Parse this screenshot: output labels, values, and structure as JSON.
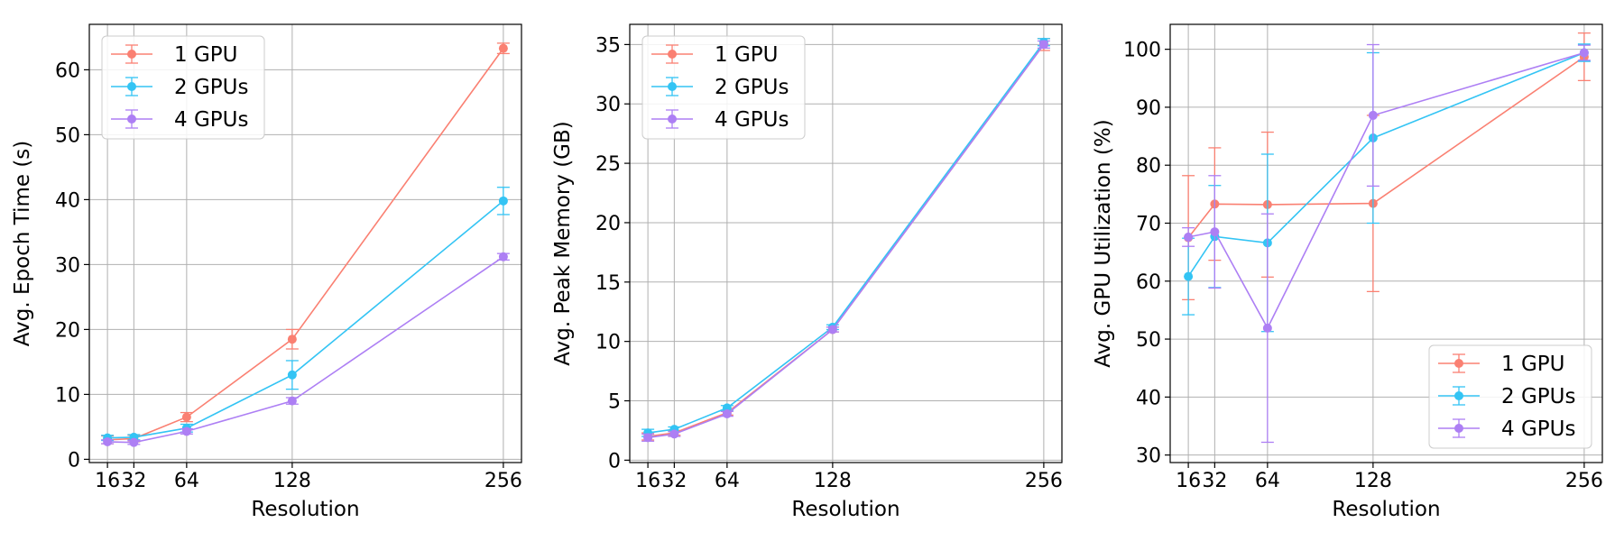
{
  "colors": {
    "1gpu": "#fa8072",
    "2gpus": "#33c4f4",
    "4gpus": "#ad7ff4",
    "grid": "#b0b0b0"
  },
  "chart_data": [
    {
      "type": "line",
      "xlabel": "Resolution",
      "ylabel": "Avg. Epoch Time (s)",
      "x": [
        16,
        32,
        64,
        128,
        256
      ],
      "x_tick_labels": [
        "16",
        "32",
        "64",
        "128",
        "256"
      ],
      "xlim": [
        5,
        267
      ],
      "ylim": [
        -0.5,
        67
      ],
      "yticks": [
        0,
        10,
        20,
        30,
        40,
        50,
        60
      ],
      "grid": true,
      "legend": "top-left",
      "series": [
        {
          "name": "1 GPU",
          "color_key": "1gpu",
          "values": [
            3.0,
            3.2,
            6.5,
            18.5,
            63.3
          ],
          "errors": [
            0.6,
            0.5,
            0.7,
            1.5,
            0.8
          ]
        },
        {
          "name": "2 GPUs",
          "color_key": "2gpus",
          "values": [
            3.3,
            3.4,
            4.8,
            13.0,
            39.8
          ],
          "errors": [
            0.4,
            0.4,
            0.6,
            2.2,
            2.1
          ]
        },
        {
          "name": "4 GPUs",
          "color_key": "4gpus",
          "values": [
            2.7,
            2.6,
            4.3,
            9.0,
            31.2
          ],
          "errors": [
            0.3,
            0.3,
            0.4,
            0.5,
            0.5
          ]
        }
      ]
    },
    {
      "type": "line",
      "xlabel": "Resolution",
      "ylabel": "Avg. Peak Memory (GB)",
      "x": [
        16,
        32,
        64,
        128,
        256
      ],
      "x_tick_labels": [
        "16",
        "32",
        "64",
        "128",
        "256"
      ],
      "xlim": [
        5,
        267
      ],
      "ylim": [
        -0.2,
        36.7
      ],
      "yticks": [
        0,
        5,
        10,
        15,
        20,
        25,
        30,
        35
      ],
      "grid": true,
      "legend": "top-left",
      "series": [
        {
          "name": "1 GPU",
          "color_key": "1gpu",
          "values": [
            2.0,
            2.3,
            4.0,
            11.0,
            35.0
          ],
          "errors": [
            0.3,
            0.2,
            0.2,
            0.2,
            0.5
          ]
        },
        {
          "name": "2 GPUs",
          "color_key": "2gpus",
          "values": [
            2.3,
            2.6,
            4.4,
            11.2,
            35.2
          ],
          "errors": [
            0.3,
            0.2,
            0.2,
            0.2,
            0.3
          ]
        },
        {
          "name": "4 GPUs",
          "color_key": "4gpus",
          "values": [
            1.9,
            2.2,
            3.9,
            11.0,
            35.0
          ],
          "errors": [
            0.3,
            0.2,
            0.2,
            0.2,
            0.3
          ]
        }
      ]
    },
    {
      "type": "line",
      "xlabel": "Resolution",
      "ylabel": "Avg. GPU Utilization (%)",
      "x": [
        16,
        32,
        64,
        128,
        256
      ],
      "x_tick_labels": [
        "16",
        "32",
        "64",
        "128",
        "256"
      ],
      "xlim": [
        5,
        267
      ],
      "ylim": [
        28.7,
        104.3
      ],
      "yticks": [
        30,
        40,
        50,
        60,
        70,
        80,
        90,
        100
      ],
      "grid": true,
      "legend": "bottom-right",
      "series": [
        {
          "name": "1 GPU",
          "color_key": "1gpu",
          "values": [
            67.5,
            73.3,
            73.2,
            73.4,
            98.7
          ],
          "errors": [
            10.7,
            9.7,
            12.5,
            15.2,
            4.1
          ]
        },
        {
          "name": "2 GPUs",
          "color_key": "2gpus",
          "values": [
            60.8,
            67.7,
            66.6,
            84.7,
            99.4
          ],
          "errors": [
            6.6,
            8.8,
            15.3,
            14.7,
            1.5
          ]
        },
        {
          "name": "4 GPUs",
          "color_key": "4gpus",
          "values": [
            67.6,
            68.5,
            51.9,
            88.6,
            99.4
          ],
          "errors": [
            1.6,
            9.7,
            19.7,
            12.2,
            1.3
          ]
        }
      ]
    }
  ]
}
